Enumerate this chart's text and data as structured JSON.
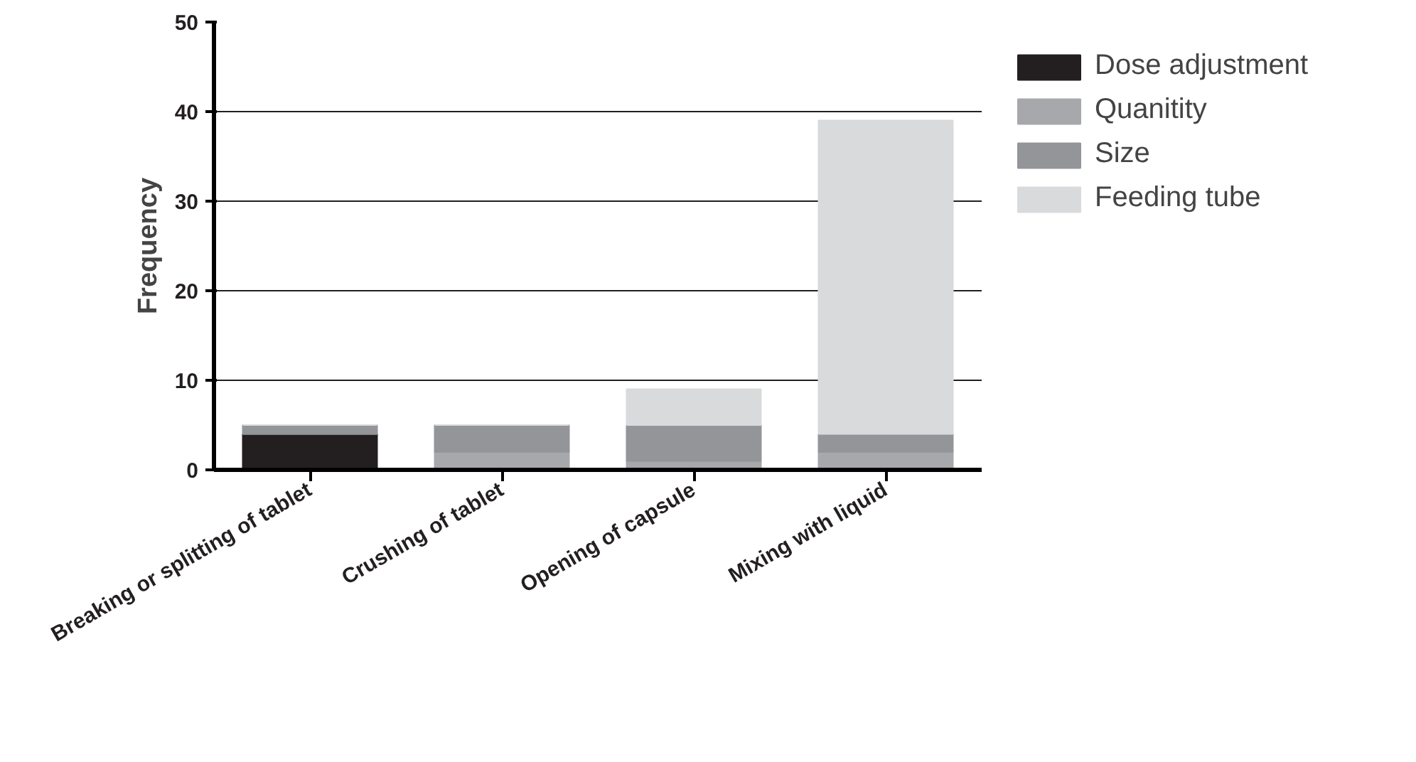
{
  "chart_data": {
    "type": "bar",
    "stacked": true,
    "ylabel": "Frequency",
    "categories": [
      "Breaking or splitting of tablet",
      "Crushing of tablet",
      "Opening of capsule",
      "Mixing with liquid"
    ],
    "series": [
      {
        "name": "Dose adjustment",
        "color": "#231f20",
        "values": [
          4,
          0,
          0,
          0
        ]
      },
      {
        "name": "Quanitity",
        "color": "#a7a8ab",
        "values": [
          0,
          2,
          1,
          2
        ]
      },
      {
        "name": "Size",
        "color": "#939598",
        "values": [
          1,
          3,
          4,
          2
        ]
      },
      {
        "name": "Feeding tube",
        "color": "#d9dadb",
        "values": [
          0,
          0,
          4,
          35
        ]
      }
    ],
    "ylim": [
      0,
      50
    ],
    "yticks": [
      0,
      10,
      20,
      30,
      40,
      50
    ],
    "grid": "y",
    "legend": "right"
  }
}
